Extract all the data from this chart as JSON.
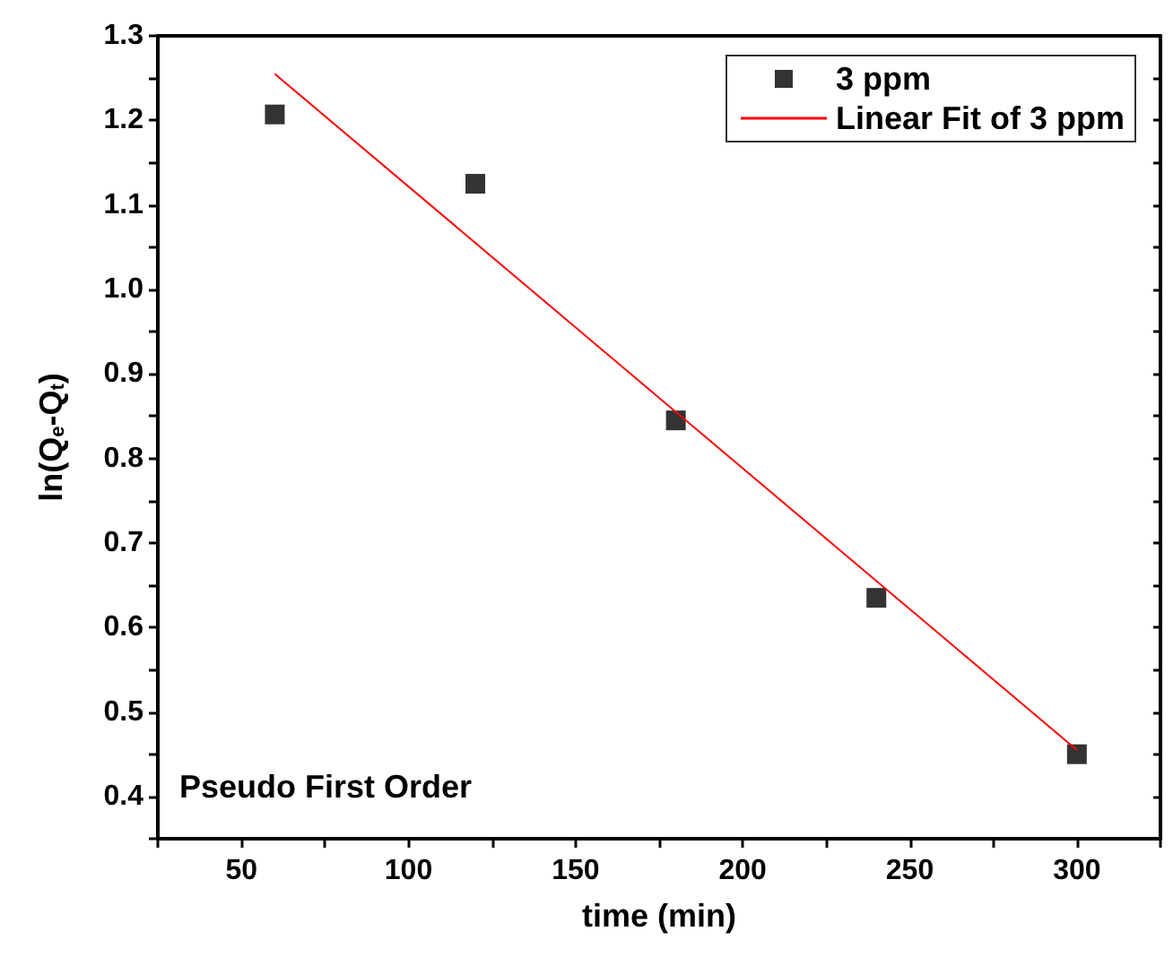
{
  "chart_data": {
    "type": "scatter",
    "xlabel": "time (min)",
    "ylabel": "ln(Q$_{e}$-Q$_{t}$)",
    "annotations": [
      "Pseudo First Order"
    ],
    "series": [
      {
        "name": "3 ppm",
        "color": "#000000",
        "marker": "square",
        "x": [
          60,
          120,
          180,
          240,
          300
        ],
        "values": [
          1.207,
          1.125,
          0.845,
          0.635,
          0.45
        ]
      },
      {
        "name": "Linear Fit of 3 ppm",
        "type": "line",
        "marker": "none",
        "color": "#ff0000",
        "x": [
          60,
          300
        ],
        "values": [
          1.255,
          0.455
        ]
      }
    ],
    "xlim": [
      25,
      325
    ],
    "xticks": [
      {
        "value": 25,
        "label": null
      },
      50,
      {
        "value": 75,
        "label": null
      },
      100,
      {
        "value": 125,
        "label": null
      },
      150,
      {
        "value": 175,
        "label": null
      },
      200,
      {
        "value": 225,
        "label": null
      },
      250,
      {
        "value": 275,
        "label": null
      },
      300,
      {
        "value": 325,
        "label": null
      }
    ],
    "ylim": [
      0.35,
      1.3
    ],
    "yticks": [
      {
        "value": 0.35,
        "label": null
      },
      0.4,
      {
        "value": 0.45,
        "label": null
      },
      0.5,
      {
        "value": 0.55,
        "label": null
      },
      0.6,
      {
        "value": 0.65,
        "label": null
      },
      0.7,
      {
        "value": 0.75,
        "label": null
      },
      0.8,
      {
        "value": 0.85,
        "label": null
      },
      0.9,
      {
        "value": 0.95,
        "label": null
      },
      {
        "value": 1.0,
        "label": "1.0"
      },
      {
        "value": 1.05,
        "label": null
      },
      1.1,
      {
        "value": 1.15,
        "label": null
      },
      1.2,
      {
        "value": 1.25,
        "label": null
      },
      1.3
    ],
    "legend": "top right",
    "grid": false
  }
}
